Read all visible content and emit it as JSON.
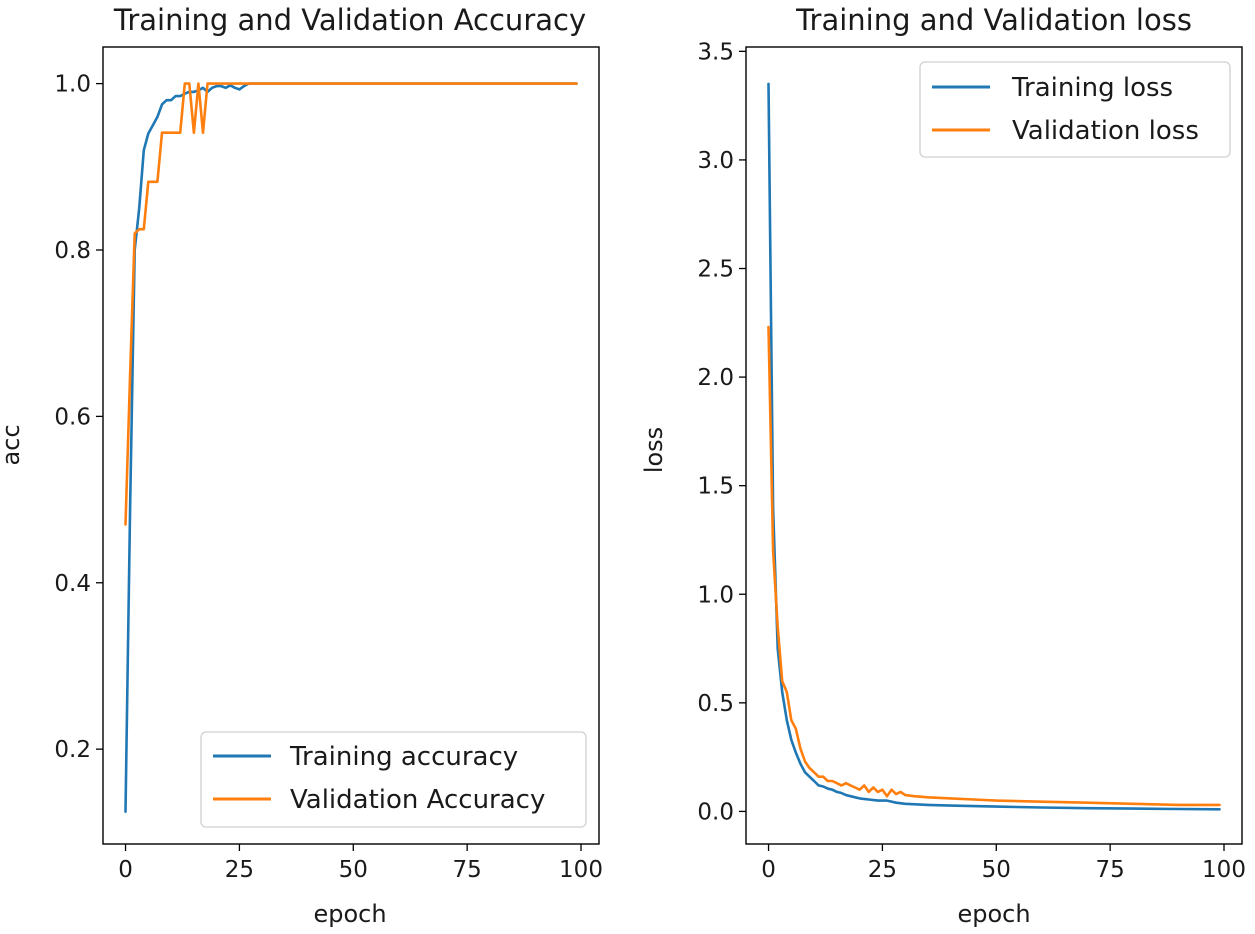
{
  "chart_data": [
    {
      "type": "line",
      "title": "Training and Validation Accuracy",
      "xlabel": "epoch",
      "ylabel": "acc",
      "xlim": [
        -4.95,
        103.95
      ],
      "ylim": [
        0.086,
        1.044
      ],
      "xticks": [
        0,
        25,
        50,
        75,
        100
      ],
      "xtick_labels": [
        "0",
        "25",
        "50",
        "75",
        "100"
      ],
      "yticks": [
        0.2,
        0.4,
        0.6,
        0.8,
        1.0
      ],
      "ytick_labels": [
        "0.2",
        "0.4",
        "0.6",
        "0.8",
        "1.0"
      ],
      "grid": false,
      "legend_position": "lower-right",
      "series": [
        {
          "name": "Training accuracy",
          "color": "#1f77b4",
          "x": [
            0,
            1,
            2,
            3,
            4,
            5,
            6,
            7,
            8,
            9,
            10,
            11,
            12,
            13,
            14,
            15,
            16,
            17,
            18,
            19,
            20,
            21,
            22,
            23,
            24,
            25,
            26,
            27,
            30,
            40,
            50,
            60,
            70,
            80,
            90,
            99
          ],
          "y": [
            0.125,
            0.49,
            0.8,
            0.85,
            0.92,
            0.94,
            0.95,
            0.96,
            0.975,
            0.98,
            0.98,
            0.985,
            0.985,
            0.988,
            0.99,
            0.99,
            0.992,
            0.995,
            0.99,
            0.995,
            0.997,
            0.997,
            0.995,
            0.998,
            0.995,
            0.993,
            0.997,
            1.0,
            1.0,
            1.0,
            1.0,
            1.0,
            1.0,
            1.0,
            1.0,
            1.0
          ]
        },
        {
          "name": "Validation Accuracy",
          "color": "#ff7f0e",
          "x": [
            0,
            1,
            2,
            3,
            4,
            5,
            6,
            7,
            8,
            9,
            10,
            11,
            12,
            13,
            14,
            15,
            16,
            17,
            18,
            19,
            20,
            25,
            30,
            40,
            50,
            60,
            70,
            80,
            90,
            99
          ],
          "y": [
            0.47,
            0.65,
            0.82,
            0.825,
            0.825,
            0.882,
            0.882,
            0.882,
            0.941,
            0.941,
            0.941,
            0.941,
            0.941,
            1.0,
            1.0,
            0.941,
            1.0,
            0.941,
            1.0,
            1.0,
            1.0,
            1.0,
            1.0,
            1.0,
            1.0,
            1.0,
            1.0,
            1.0,
            1.0,
            1.0
          ]
        }
      ]
    },
    {
      "type": "line",
      "title": "Training and Validation loss",
      "xlabel": "epoch",
      "ylabel": "loss",
      "xlim": [
        -4.95,
        103.95
      ],
      "ylim": [
        -0.15,
        3.52
      ],
      "xticks": [
        0,
        25,
        50,
        75,
        100
      ],
      "xtick_labels": [
        "0",
        "25",
        "50",
        "75",
        "100"
      ],
      "yticks": [
        0.0,
        0.5,
        1.0,
        1.5,
        2.0,
        2.5,
        3.0,
        3.5
      ],
      "ytick_labels": [
        "0.0",
        "0.5",
        "1.0",
        "1.5",
        "2.0",
        "2.5",
        "3.0",
        "3.5"
      ],
      "grid": false,
      "legend_position": "upper-right",
      "series": [
        {
          "name": "Training loss",
          "color": "#1f77b4",
          "x": [
            0,
            1,
            2,
            3,
            4,
            5,
            6,
            7,
            8,
            9,
            10,
            11,
            12,
            13,
            14,
            15,
            16,
            17,
            18,
            19,
            20,
            22,
            24,
            26,
            28,
            30,
            35,
            40,
            50,
            60,
            70,
            80,
            90,
            99
          ],
          "y": [
            3.35,
            1.4,
            0.75,
            0.55,
            0.42,
            0.33,
            0.27,
            0.22,
            0.18,
            0.16,
            0.14,
            0.12,
            0.115,
            0.105,
            0.1,
            0.09,
            0.085,
            0.075,
            0.07,
            0.065,
            0.06,
            0.055,
            0.05,
            0.05,
            0.04,
            0.035,
            0.03,
            0.027,
            0.022,
            0.018,
            0.015,
            0.013,
            0.011,
            0.01
          ]
        },
        {
          "name": "Validation loss",
          "color": "#ff7f0e",
          "x": [
            0,
            1,
            2,
            3,
            4,
            5,
            6,
            7,
            8,
            9,
            10,
            11,
            12,
            13,
            14,
            15,
            16,
            17,
            18,
            19,
            20,
            21,
            22,
            23,
            24,
            25,
            26,
            27,
            28,
            29,
            30,
            32,
            35,
            40,
            45,
            50,
            60,
            70,
            80,
            90,
            99
          ],
          "y": [
            2.23,
            1.2,
            0.85,
            0.6,
            0.55,
            0.42,
            0.38,
            0.29,
            0.23,
            0.2,
            0.18,
            0.16,
            0.16,
            0.14,
            0.14,
            0.13,
            0.12,
            0.13,
            0.12,
            0.11,
            0.1,
            0.12,
            0.09,
            0.11,
            0.09,
            0.1,
            0.07,
            0.1,
            0.08,
            0.09,
            0.075,
            0.07,
            0.065,
            0.06,
            0.055,
            0.05,
            0.045,
            0.04,
            0.035,
            0.03,
            0.03
          ]
        }
      ]
    }
  ]
}
